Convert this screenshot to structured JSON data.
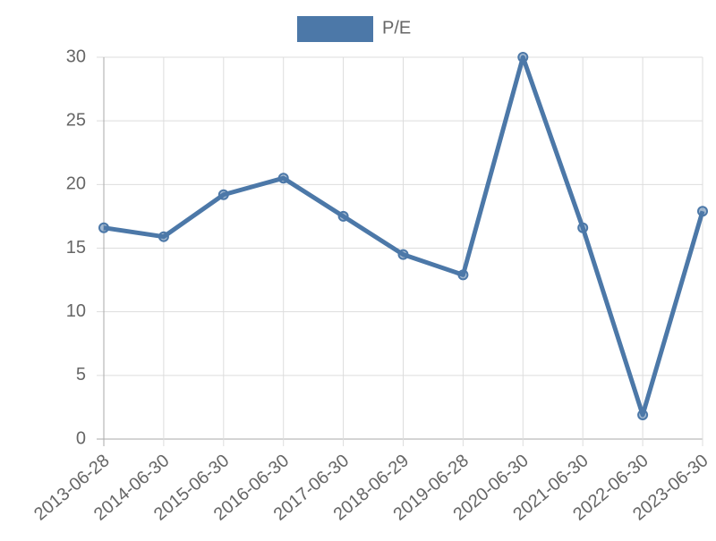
{
  "chart_data": {
    "type": "line",
    "categories": [
      "2013-06-28",
      "2014-06-30",
      "2015-06-30",
      "2016-06-30",
      "2017-06-30",
      "2018-06-29",
      "2019-06-28",
      "2020-06-30",
      "2021-06-30",
      "2022-06-30",
      "2023-06-30"
    ],
    "series": [
      {
        "name": "P/E",
        "color": "#4c78a8",
        "values": [
          16.6,
          15.9,
          19.2,
          20.5,
          17.5,
          14.5,
          12.9,
          30,
          16.6,
          1.9,
          17.9
        ]
      }
    ],
    "ylim": [
      0,
      30
    ],
    "yticks": [
      0,
      5,
      10,
      15,
      20,
      25,
      30
    ],
    "grid": true,
    "legend": "top"
  }
}
